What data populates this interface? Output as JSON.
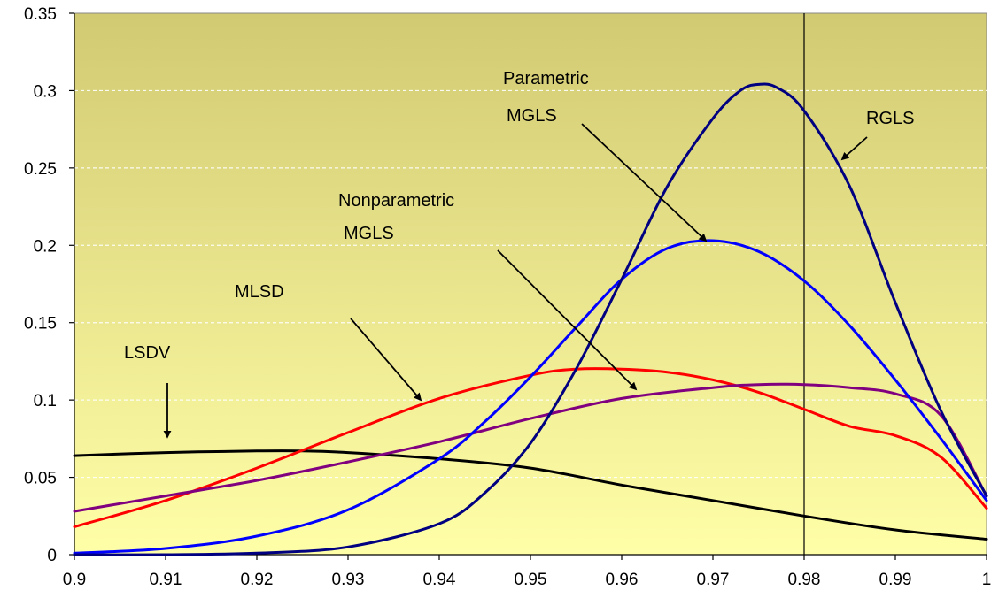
{
  "chart_data": {
    "type": "line",
    "title": "",
    "xlabel": "",
    "ylabel": "",
    "xlim": [
      0.9,
      1.0
    ],
    "ylim": [
      0,
      0.35
    ],
    "x_ticks": [
      "0.9",
      "0.91",
      "0.92",
      "0.93",
      "0.94",
      "0.95",
      "0.96",
      "0.97",
      "0.98",
      "0.99",
      "1"
    ],
    "y_ticks": [
      "0",
      "0.05",
      "0.1",
      "0.15",
      "0.2",
      "0.25",
      "0.3",
      "0.35"
    ],
    "grid": true,
    "vertical_reference_line": 0.98,
    "colors": {
      "plot_top": "#d2ca72",
      "plot_bottom": "#ffffa8",
      "LSDV": "#000000",
      "MLSD": "#ff0000",
      "Nonparametric MGLS": "#800080",
      "Parametric MGLS": "#0000ff",
      "RGLS": "#000080"
    },
    "series": [
      {
        "name": "LSDV",
        "x": [
          0.9,
          0.91,
          0.92,
          0.925,
          0.93,
          0.94,
          0.95,
          0.96,
          0.97,
          0.98,
          0.99,
          1.0
        ],
        "y": [
          0.064,
          0.066,
          0.067,
          0.067,
          0.066,
          0.062,
          0.056,
          0.045,
          0.035,
          0.025,
          0.016,
          0.01
        ]
      },
      {
        "name": "MLSD",
        "x": [
          0.9,
          0.91,
          0.92,
          0.93,
          0.94,
          0.95,
          0.955,
          0.96,
          0.965,
          0.97,
          0.975,
          0.98,
          0.985,
          0.99,
          0.995,
          1.0
        ],
        "y": [
          0.018,
          0.035,
          0.056,
          0.079,
          0.101,
          0.116,
          0.12,
          0.12,
          0.118,
          0.113,
          0.105,
          0.094,
          0.083,
          0.077,
          0.063,
          0.03
        ]
      },
      {
        "name": "Nonparametric MGLS",
        "x": [
          0.9,
          0.91,
          0.92,
          0.93,
          0.94,
          0.95,
          0.96,
          0.97,
          0.975,
          0.98,
          0.985,
          0.99,
          0.995,
          1.0
        ],
        "y": [
          0.028,
          0.038,
          0.048,
          0.06,
          0.073,
          0.088,
          0.101,
          0.108,
          0.11,
          0.11,
          0.108,
          0.104,
          0.09,
          0.038
        ]
      },
      {
        "name": "Parametric MGLS",
        "x": [
          0.9,
          0.91,
          0.92,
          0.93,
          0.94,
          0.945,
          0.95,
          0.955,
          0.96,
          0.965,
          0.97,
          0.975,
          0.98,
          0.985,
          0.99,
          0.995,
          1.0
        ],
        "y": [
          0.001,
          0.004,
          0.012,
          0.029,
          0.062,
          0.086,
          0.115,
          0.147,
          0.178,
          0.198,
          0.203,
          0.196,
          0.177,
          0.148,
          0.113,
          0.075,
          0.035
        ]
      },
      {
        "name": "RGLS",
        "x": [
          0.9,
          0.91,
          0.92,
          0.93,
          0.94,
          0.945,
          0.95,
          0.955,
          0.96,
          0.965,
          0.97,
          0.973,
          0.975,
          0.977,
          0.98,
          0.985,
          0.99,
          0.995,
          1.0
        ],
        "y": [
          0.0,
          0.0,
          0.001,
          0.005,
          0.02,
          0.04,
          0.072,
          0.12,
          0.178,
          0.238,
          0.282,
          0.3,
          0.304,
          0.302,
          0.287,
          0.238,
          0.163,
          0.093,
          0.038
        ]
      }
    ],
    "annotations": [
      {
        "text": "LSDV",
        "series": "LSDV"
      },
      {
        "text": "MLSD",
        "series": "MLSD"
      },
      {
        "text": "Nonparametric",
        "series": "Nonparametric MGLS"
      },
      {
        "text": "MGLS",
        "series": "Nonparametric MGLS"
      },
      {
        "text": "Parametric",
        "series": "Parametric MGLS"
      },
      {
        "text": "MGLS",
        "series": "Parametric MGLS"
      },
      {
        "text": "RGLS",
        "series": "RGLS"
      }
    ]
  }
}
